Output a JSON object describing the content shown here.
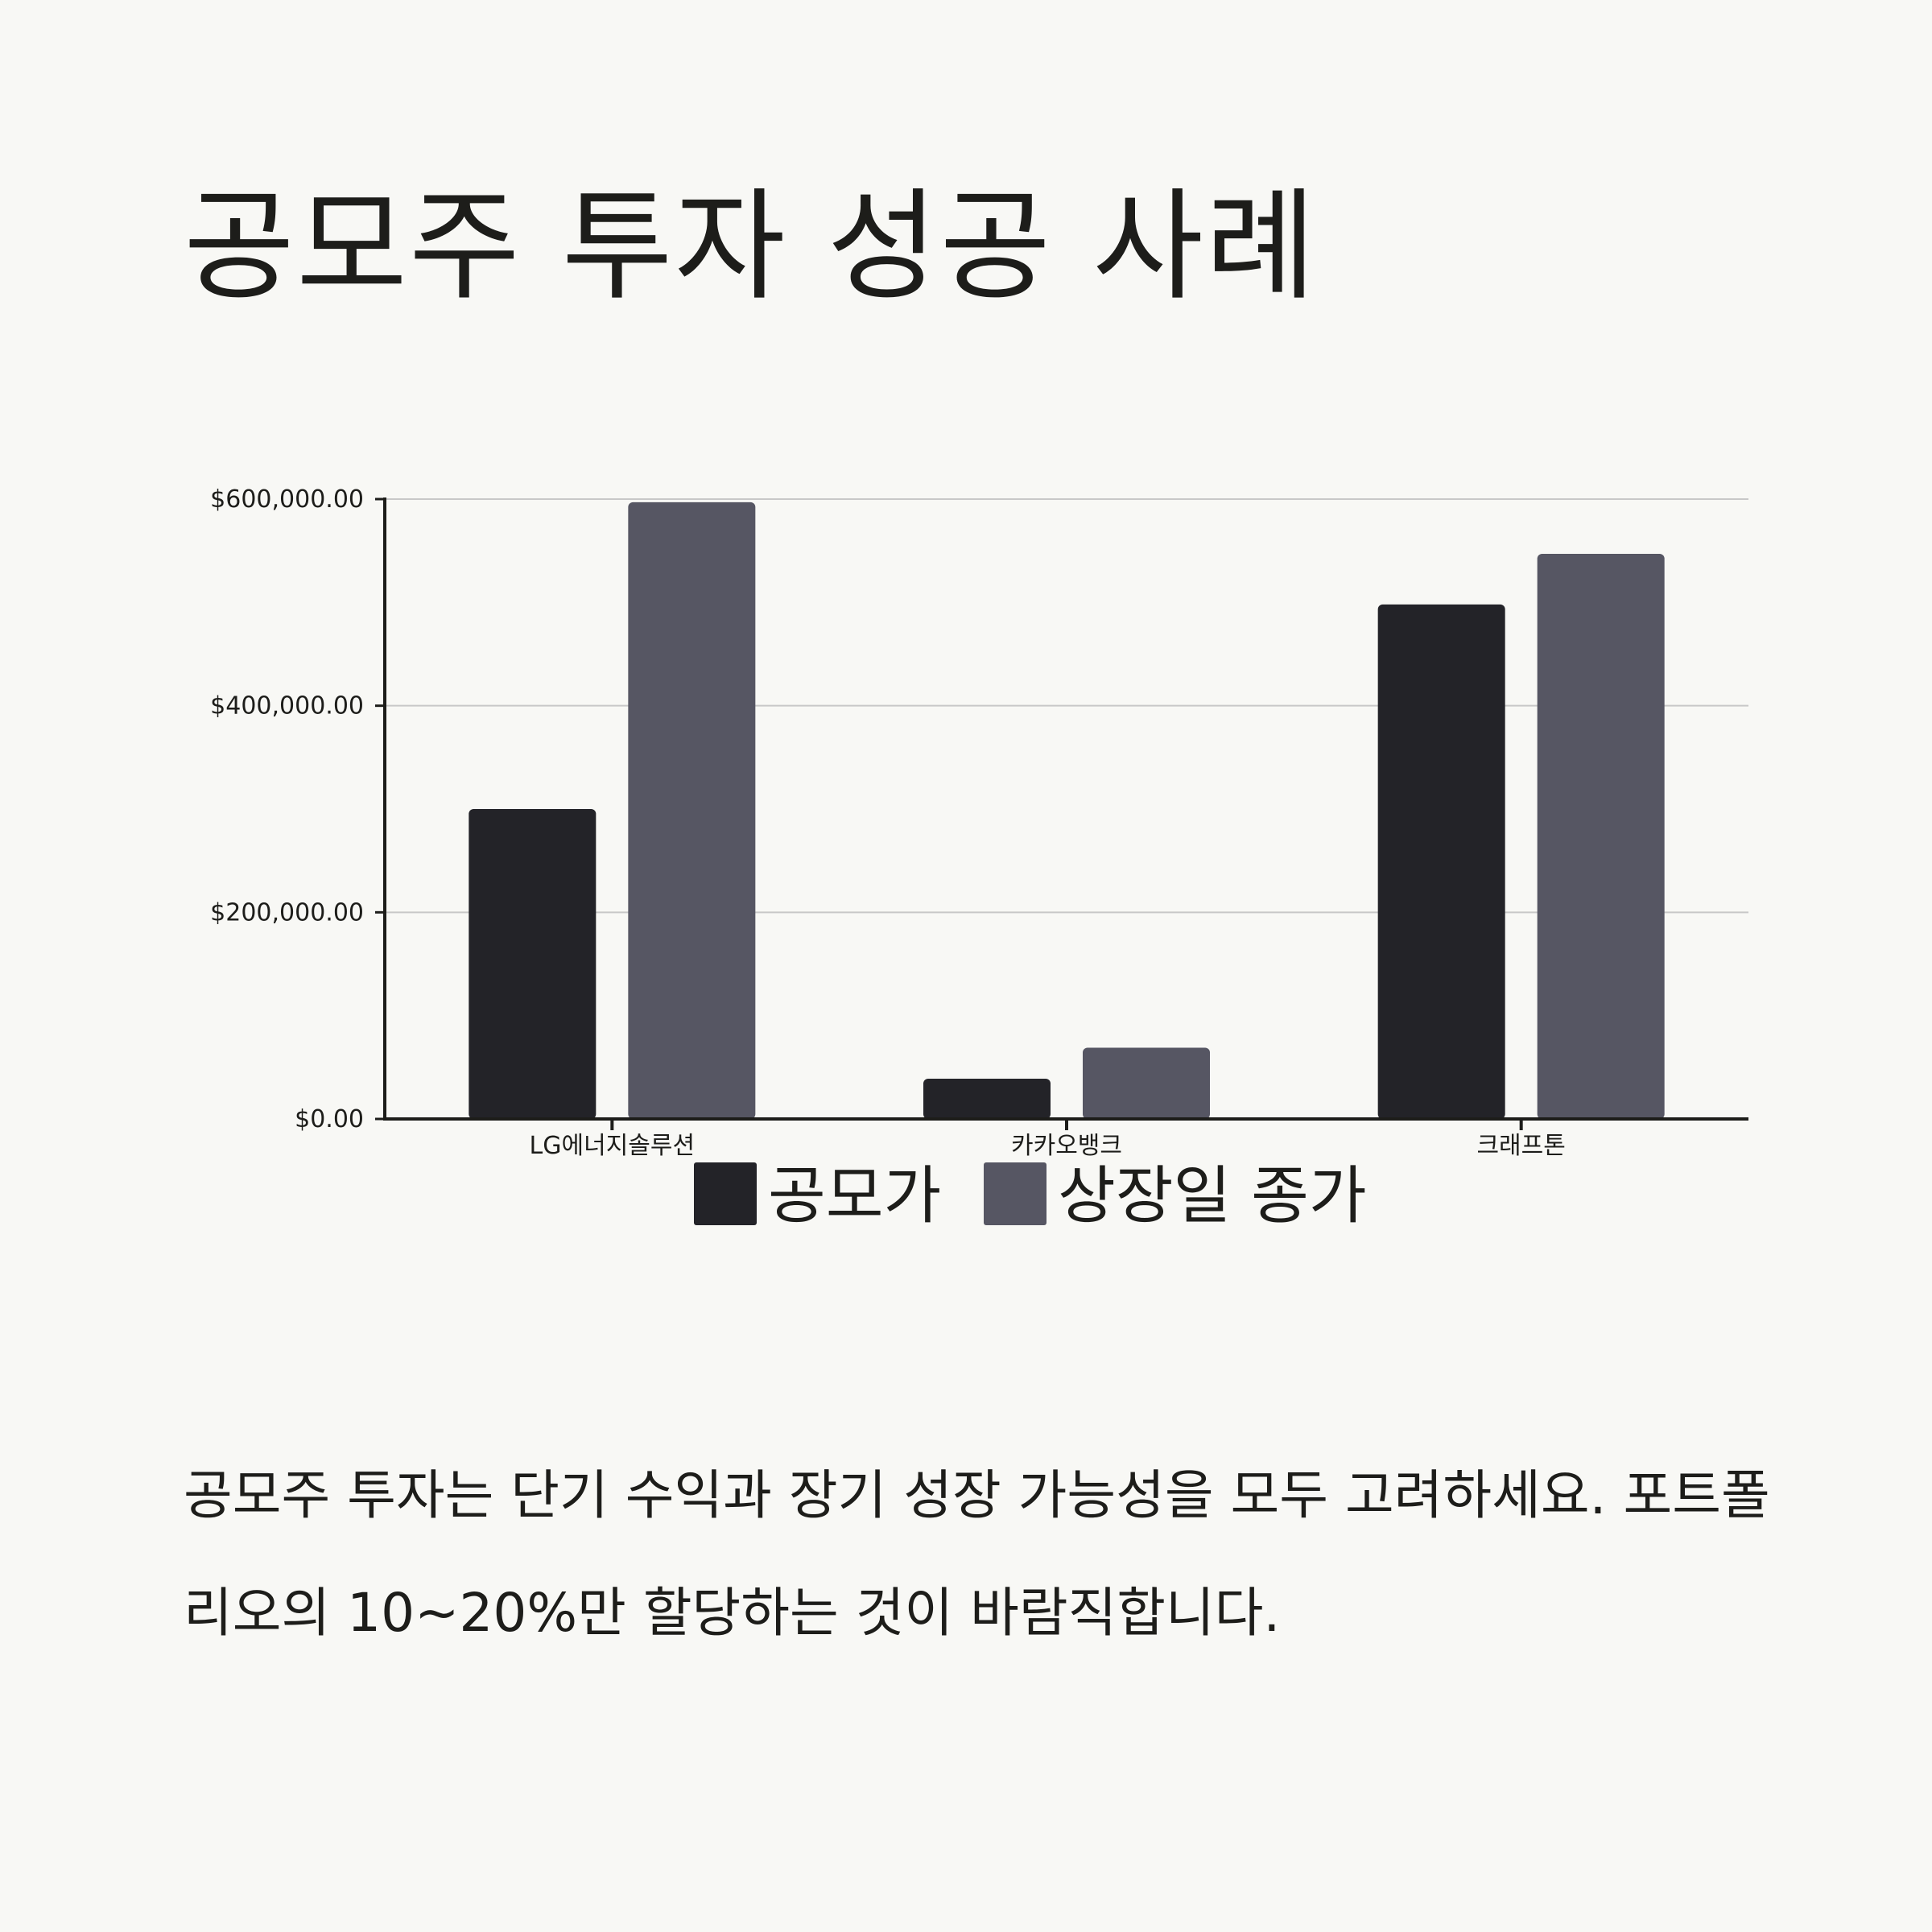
{
  "page": {
    "title": "공모주 투자 성공 사례",
    "body": "공모주 투자는 단기 수익과 장기 성장 가능성을 모두 고려하세요. 포트폴리오의 10~20%만 할당하는 것이 바람직합니다."
  },
  "colors": {
    "background": "#f8f8f5",
    "series_1": "#232328",
    "series_2": "#565663",
    "grid": "#c8c8c8",
    "axis": "#1d1d1a"
  },
  "chart_data": {
    "type": "bar",
    "categories": [
      "LG에너지솔루션",
      "카카오뱅크",
      "크래프톤"
    ],
    "series": [
      {
        "name": "공모가",
        "values": [
          300000,
          39000,
          498000
        ]
      },
      {
        "name": "상장일 종가",
        "values": [
          597000,
          69000,
          547000
        ]
      }
    ],
    "ylim": [
      0,
      600000
    ],
    "yticks": [
      0,
      200000,
      400000,
      600000
    ],
    "ytick_labels": [
      "$0.00",
      "$200,000.00",
      "$400,000.00",
      "$600,000.00"
    ],
    "grid": true,
    "legend_position": "bottom"
  }
}
